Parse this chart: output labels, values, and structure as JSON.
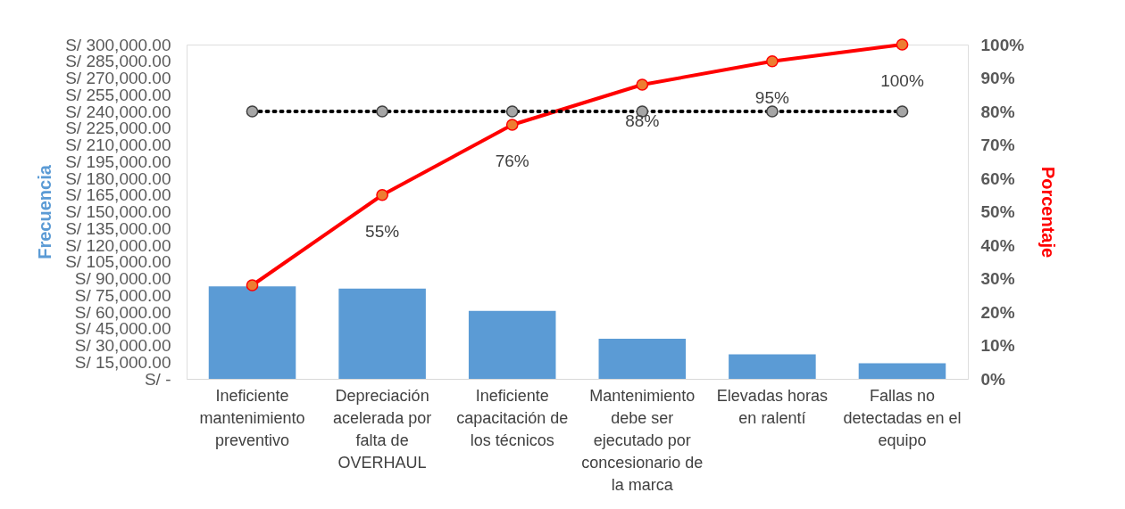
{
  "chart_data": {
    "type": "bar",
    "categories": [
      "Ineficiente mantenimiento preventivo",
      "Depreciación acelerada por falta de OVERHAUL",
      "Ineficiente capacitación de los técnicos",
      "Mantenimiento debe ser ejecutado por concesionario de la marca",
      "Elevadas horas en ralentí",
      "Fallas no detectadas en el equipo"
    ],
    "ylabel": "Frecuencia",
    "y2label": "Porcentaje",
    "series": [
      {
        "color": "#5b9bd5",
        "values": [
          83000,
          81000,
          61000,
          36000,
          22000,
          14000
        ]
      },
      {
        "type": "line",
        "axis": "y2",
        "color": "#ff0000",
        "marker": "circle",
        "line_style": "solid",
        "values": [
          28,
          55,
          76,
          88,
          95,
          100
        ],
        "value_labels": [
          null,
          "55%",
          "76%",
          "88%",
          "95%",
          "100%"
        ]
      },
      {
        "type": "line",
        "axis": "y2",
        "color": "#000000",
        "marker": "circle",
        "line_style": "dotted",
        "values": [
          80,
          80,
          80,
          80,
          80,
          80
        ]
      }
    ],
    "ylim": [
      0,
      300000
    ],
    "yticks": [
      {
        "value": 0,
        "label": "S/ -"
      },
      {
        "value": 15000,
        "label": "S/ 15,000.00"
      },
      {
        "value": 30000,
        "label": "S/ 30,000.00"
      },
      {
        "value": 45000,
        "label": "S/ 45,000.00"
      },
      {
        "value": 60000,
        "label": "S/ 60,000.00"
      },
      {
        "value": 75000,
        "label": "S/ 75,000.00"
      },
      {
        "value": 90000,
        "label": "S/ 90,000.00"
      },
      {
        "value": 105000,
        "label": "S/ 105,000.00"
      },
      {
        "value": 120000,
        "label": "S/ 120,000.00"
      },
      {
        "value": 135000,
        "label": "S/ 135,000.00"
      },
      {
        "value": 150000,
        "label": "S/ 150,000.00"
      },
      {
        "value": 165000,
        "label": "S/ 165,000.00"
      },
      {
        "value": 180000,
        "label": "S/ 180,000.00"
      },
      {
        "value": 195000,
        "label": "S/ 195,000.00"
      },
      {
        "value": 210000,
        "label": "S/ 210,000.00"
      },
      {
        "value": 225000,
        "label": "S/ 225,000.00"
      },
      {
        "value": 240000,
        "label": "S/ 240,000.00"
      },
      {
        "value": 255000,
        "label": "S/ 255,000.00"
      },
      {
        "value": 270000,
        "label": "S/ 270,000.00"
      },
      {
        "value": 285000,
        "label": "S/ 285,000.00"
      },
      {
        "value": 300000,
        "label": "S/ 300,000.00"
      }
    ],
    "y2lim": [
      0,
      100
    ],
    "y2ticks": [
      {
        "value": 0,
        "label": "0%"
      },
      {
        "value": 10,
        "label": "10%"
      },
      {
        "value": 20,
        "label": "20%"
      },
      {
        "value": 30,
        "label": "30%"
      },
      {
        "value": 40,
        "label": "40%"
      },
      {
        "value": 50,
        "label": "50%"
      },
      {
        "value": 60,
        "label": "60%"
      },
      {
        "value": 70,
        "label": "70%"
      },
      {
        "value": 80,
        "label": "80%"
      },
      {
        "value": 90,
        "label": "90%"
      },
      {
        "value": 100,
        "label": "100%"
      }
    ],
    "grid": false
  }
}
